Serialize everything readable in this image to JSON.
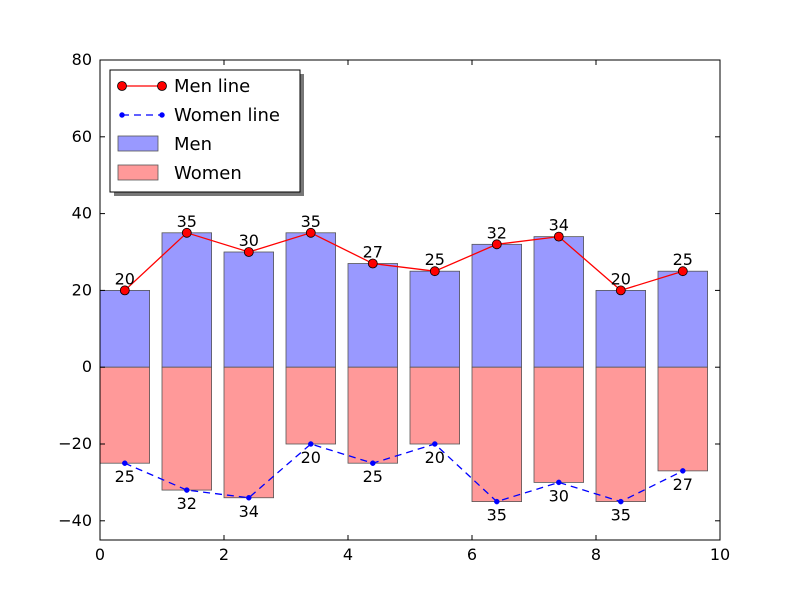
{
  "chart_data": {
    "type": "bar",
    "x": [
      0.4,
      1.4,
      2.4,
      3.4,
      4.4,
      5.4,
      6.4,
      7.4,
      8.4,
      9.4
    ],
    "bar_width": 0.8,
    "xlim": [
      0,
      10
    ],
    "ylim": [
      -45,
      80
    ],
    "xticks": [
      0,
      2,
      4,
      6,
      8,
      10
    ],
    "yticks": [
      -40,
      -20,
      0,
      20,
      40,
      60,
      80
    ],
    "xtick_labels": [
      "0",
      "2",
      "4",
      "6",
      "8",
      "10"
    ],
    "ytick_labels": [
      "−40",
      "−20",
      "0",
      "20",
      "40",
      "60",
      "80"
    ],
    "series": [
      {
        "name": "Men",
        "kind": "bar",
        "color": "#9999ff",
        "values": [
          20,
          35,
          30,
          35,
          27,
          25,
          32,
          34,
          20,
          25
        ]
      },
      {
        "name": "Women",
        "kind": "bar",
        "color": "#ff9999",
        "values": [
          -25,
          -32,
          -34,
          -20,
          -25,
          -20,
          -35,
          -30,
          -35,
          -27
        ]
      },
      {
        "name": "Men line",
        "kind": "line",
        "color": "#ff0000",
        "values": [
          20,
          35,
          30,
          35,
          27,
          25,
          32,
          34,
          20,
          25
        ]
      },
      {
        "name": "Women line",
        "kind": "line",
        "color": "#0000ff",
        "values": [
          -25,
          -32,
          -34,
          -20,
          -25,
          -20,
          -35,
          -30,
          -35,
          -27
        ]
      }
    ],
    "data_labels": {
      "men": [
        "20",
        "35",
        "30",
        "35",
        "27",
        "25",
        "32",
        "34",
        "20",
        "25"
      ],
      "women": [
        "25",
        "32",
        "34",
        "20",
        "25",
        "20",
        "35",
        "30",
        "35",
        "27"
      ]
    },
    "legend": {
      "placement": "top-left",
      "entries": [
        "Men line",
        "Women line",
        "Men",
        "Women"
      ]
    },
    "grid": false,
    "title": "",
    "xlabel": "",
    "ylabel": ""
  }
}
